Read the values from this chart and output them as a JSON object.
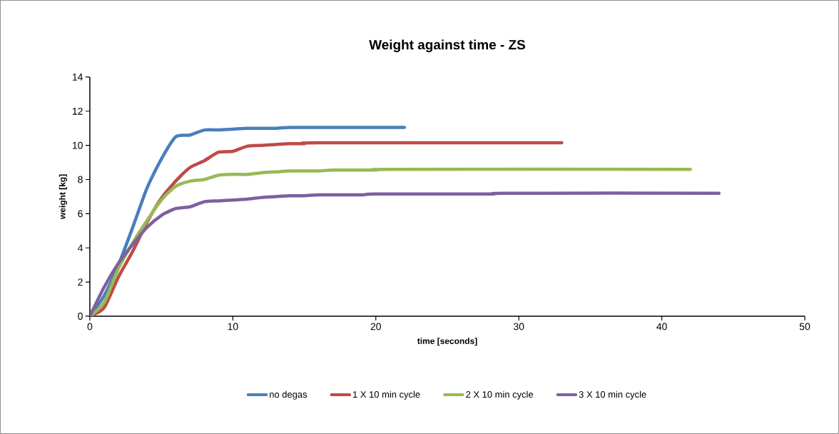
{
  "chart_data": {
    "type": "line",
    "title": "Weight against time - ZS",
    "xlabel": "time [seconds]",
    "ylabel": "weight [kg]",
    "xlim": [
      0,
      50
    ],
    "xticks": [
      0,
      10,
      20,
      30,
      40,
      50
    ],
    "ylim": [
      0,
      14
    ],
    "yticks": [
      0,
      2,
      4,
      6,
      8,
      10,
      12,
      14
    ],
    "grid": false,
    "legend": "bottom",
    "marker": "none",
    "line_style": "solid",
    "series": [
      {
        "name": "no degas",
        "color": "#4a7ebb",
        "x": [
          0,
          1,
          2,
          3,
          4,
          5,
          6,
          7,
          8,
          9,
          10,
          11,
          12,
          13,
          14,
          15,
          22
        ],
        "values": [
          0,
          1.2,
          3,
          5.2,
          7.5,
          9.2,
          10.5,
          10.6,
          10.9,
          10.9,
          10.95,
          11,
          11,
          11,
          11.05,
          11.05,
          11.05
        ]
      },
      {
        "name": "1 X 10 min cycle",
        "color": "#be4b48",
        "x": [
          0,
          1,
          2,
          3,
          4,
          5,
          6,
          7,
          8,
          9,
          10,
          11,
          12,
          13,
          14,
          15,
          16,
          33
        ],
        "values": [
          0,
          0.5,
          2.3,
          3.8,
          5.5,
          6.9,
          7.9,
          8.7,
          9.1,
          9.6,
          9.65,
          9.95,
          10,
          10.05,
          10.1,
          10.1,
          10.15,
          10.15
        ]
      },
      {
        "name": "2 X 10 min cycle",
        "color": "#98b954",
        "x": [
          0,
          1,
          2,
          3,
          4,
          5,
          6,
          7,
          8,
          9,
          10,
          11,
          12,
          13,
          14,
          15,
          16,
          17,
          20,
          21,
          42
        ],
        "values": [
          0,
          0.8,
          2.8,
          4.3,
          5.6,
          6.8,
          7.6,
          7.9,
          8,
          8.25,
          8.3,
          8.3,
          8.4,
          8.45,
          8.5,
          8.5,
          8.5,
          8.55,
          8.55,
          8.6,
          8.6
        ]
      },
      {
        "name": "3 X 10 min cycle",
        "color": "#7d60a0",
        "x": [
          0,
          1,
          2,
          3,
          4,
          5,
          6,
          7,
          8,
          9,
          10,
          11,
          12,
          13,
          14,
          15,
          16,
          19,
          20,
          28,
          29,
          44
        ],
        "values": [
          0,
          1.7,
          3.1,
          4.2,
          5.2,
          5.9,
          6.3,
          6.4,
          6.7,
          6.75,
          6.8,
          6.85,
          6.95,
          7,
          7.05,
          7.05,
          7.1,
          7.1,
          7.15,
          7.15,
          7.2,
          7.2
        ]
      }
    ]
  }
}
